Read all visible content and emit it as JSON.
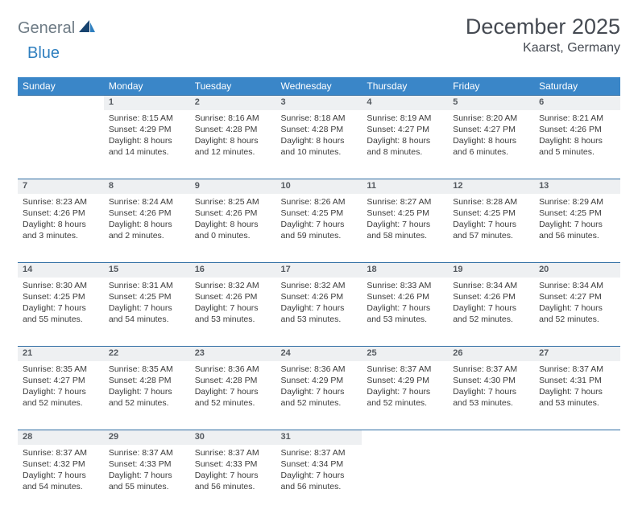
{
  "brand": {
    "general": "General",
    "blue": "Blue"
  },
  "title": "December 2025",
  "location": "Kaarst, Germany",
  "colors": {
    "header_bg": "#3a86c8",
    "header_text": "#ffffff",
    "day_bg": "#eef0f2",
    "day_border": "#2f6da3",
    "text": "#3b3b3b",
    "title_text": "#454a52",
    "logo_gray": "#6e7b85",
    "logo_blue": "#2f7fbf",
    "page_bg": "#ffffff"
  },
  "dow": [
    "Sunday",
    "Monday",
    "Tuesday",
    "Wednesday",
    "Thursday",
    "Friday",
    "Saturday"
  ],
  "weeks": [
    [
      {
        "n": "",
        "lines": []
      },
      {
        "n": "1",
        "lines": [
          "Sunrise: 8:15 AM",
          "Sunset: 4:29 PM",
          "Daylight: 8 hours",
          "and 14 minutes."
        ]
      },
      {
        "n": "2",
        "lines": [
          "Sunrise: 8:16 AM",
          "Sunset: 4:28 PM",
          "Daylight: 8 hours",
          "and 12 minutes."
        ]
      },
      {
        "n": "3",
        "lines": [
          "Sunrise: 8:18 AM",
          "Sunset: 4:28 PM",
          "Daylight: 8 hours",
          "and 10 minutes."
        ]
      },
      {
        "n": "4",
        "lines": [
          "Sunrise: 8:19 AM",
          "Sunset: 4:27 PM",
          "Daylight: 8 hours",
          "and 8 minutes."
        ]
      },
      {
        "n": "5",
        "lines": [
          "Sunrise: 8:20 AM",
          "Sunset: 4:27 PM",
          "Daylight: 8 hours",
          "and 6 minutes."
        ]
      },
      {
        "n": "6",
        "lines": [
          "Sunrise: 8:21 AM",
          "Sunset: 4:26 PM",
          "Daylight: 8 hours",
          "and 5 minutes."
        ]
      }
    ],
    [
      {
        "n": "7",
        "lines": [
          "Sunrise: 8:23 AM",
          "Sunset: 4:26 PM",
          "Daylight: 8 hours",
          "and 3 minutes."
        ]
      },
      {
        "n": "8",
        "lines": [
          "Sunrise: 8:24 AM",
          "Sunset: 4:26 PM",
          "Daylight: 8 hours",
          "and 2 minutes."
        ]
      },
      {
        "n": "9",
        "lines": [
          "Sunrise: 8:25 AM",
          "Sunset: 4:26 PM",
          "Daylight: 8 hours",
          "and 0 minutes."
        ]
      },
      {
        "n": "10",
        "lines": [
          "Sunrise: 8:26 AM",
          "Sunset: 4:25 PM",
          "Daylight: 7 hours",
          "and 59 minutes."
        ]
      },
      {
        "n": "11",
        "lines": [
          "Sunrise: 8:27 AM",
          "Sunset: 4:25 PM",
          "Daylight: 7 hours",
          "and 58 minutes."
        ]
      },
      {
        "n": "12",
        "lines": [
          "Sunrise: 8:28 AM",
          "Sunset: 4:25 PM",
          "Daylight: 7 hours",
          "and 57 minutes."
        ]
      },
      {
        "n": "13",
        "lines": [
          "Sunrise: 8:29 AM",
          "Sunset: 4:25 PM",
          "Daylight: 7 hours",
          "and 56 minutes."
        ]
      }
    ],
    [
      {
        "n": "14",
        "lines": [
          "Sunrise: 8:30 AM",
          "Sunset: 4:25 PM",
          "Daylight: 7 hours",
          "and 55 minutes."
        ]
      },
      {
        "n": "15",
        "lines": [
          "Sunrise: 8:31 AM",
          "Sunset: 4:25 PM",
          "Daylight: 7 hours",
          "and 54 minutes."
        ]
      },
      {
        "n": "16",
        "lines": [
          "Sunrise: 8:32 AM",
          "Sunset: 4:26 PM",
          "Daylight: 7 hours",
          "and 53 minutes."
        ]
      },
      {
        "n": "17",
        "lines": [
          "Sunrise: 8:32 AM",
          "Sunset: 4:26 PM",
          "Daylight: 7 hours",
          "and 53 minutes."
        ]
      },
      {
        "n": "18",
        "lines": [
          "Sunrise: 8:33 AM",
          "Sunset: 4:26 PM",
          "Daylight: 7 hours",
          "and 53 minutes."
        ]
      },
      {
        "n": "19",
        "lines": [
          "Sunrise: 8:34 AM",
          "Sunset: 4:26 PM",
          "Daylight: 7 hours",
          "and 52 minutes."
        ]
      },
      {
        "n": "20",
        "lines": [
          "Sunrise: 8:34 AM",
          "Sunset: 4:27 PM",
          "Daylight: 7 hours",
          "and 52 minutes."
        ]
      }
    ],
    [
      {
        "n": "21",
        "lines": [
          "Sunrise: 8:35 AM",
          "Sunset: 4:27 PM",
          "Daylight: 7 hours",
          "and 52 minutes."
        ]
      },
      {
        "n": "22",
        "lines": [
          "Sunrise: 8:35 AM",
          "Sunset: 4:28 PM",
          "Daylight: 7 hours",
          "and 52 minutes."
        ]
      },
      {
        "n": "23",
        "lines": [
          "Sunrise: 8:36 AM",
          "Sunset: 4:28 PM",
          "Daylight: 7 hours",
          "and 52 minutes."
        ]
      },
      {
        "n": "24",
        "lines": [
          "Sunrise: 8:36 AM",
          "Sunset: 4:29 PM",
          "Daylight: 7 hours",
          "and 52 minutes."
        ]
      },
      {
        "n": "25",
        "lines": [
          "Sunrise: 8:37 AM",
          "Sunset: 4:29 PM",
          "Daylight: 7 hours",
          "and 52 minutes."
        ]
      },
      {
        "n": "26",
        "lines": [
          "Sunrise: 8:37 AM",
          "Sunset: 4:30 PM",
          "Daylight: 7 hours",
          "and 53 minutes."
        ]
      },
      {
        "n": "27",
        "lines": [
          "Sunrise: 8:37 AM",
          "Sunset: 4:31 PM",
          "Daylight: 7 hours",
          "and 53 minutes."
        ]
      }
    ],
    [
      {
        "n": "28",
        "lines": [
          "Sunrise: 8:37 AM",
          "Sunset: 4:32 PM",
          "Daylight: 7 hours",
          "and 54 minutes."
        ]
      },
      {
        "n": "29",
        "lines": [
          "Sunrise: 8:37 AM",
          "Sunset: 4:33 PM",
          "Daylight: 7 hours",
          "and 55 minutes."
        ]
      },
      {
        "n": "30",
        "lines": [
          "Sunrise: 8:37 AM",
          "Sunset: 4:33 PM",
          "Daylight: 7 hours",
          "and 56 minutes."
        ]
      },
      {
        "n": "31",
        "lines": [
          "Sunrise: 8:37 AM",
          "Sunset: 4:34 PM",
          "Daylight: 7 hours",
          "and 56 minutes."
        ]
      },
      {
        "n": "",
        "lines": []
      },
      {
        "n": "",
        "lines": []
      },
      {
        "n": "",
        "lines": []
      }
    ]
  ]
}
